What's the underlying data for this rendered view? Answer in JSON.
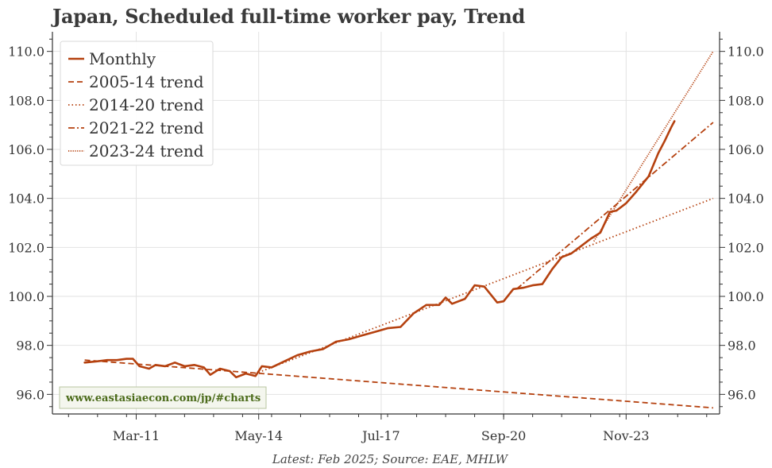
{
  "title": "Japan, Scheduled full-time worker pay, Trend",
  "footnote": "Latest: Feb 2025; Source: EAE, MHLW",
  "watermark": "www.eastasiaecon.com/jp/#charts",
  "colors": {
    "line": "#b5410f",
    "grid": "#e2e2e2",
    "axis": "#333333"
  },
  "chart_data": {
    "type": "line",
    "title": "Japan, Scheduled full-time worker pay, Trend",
    "xlabel": "",
    "ylabel": "",
    "xlim": [
      "2009-01",
      "2026-04"
    ],
    "ylim": [
      95.2,
      110.8
    ],
    "y_ticks": [
      96.0,
      98.0,
      100.0,
      102.0,
      104.0,
      106.0,
      108.0,
      110.0
    ],
    "y_tick_labels": [
      "96.0",
      "98.0",
      "100.0",
      "102.0",
      "104.0",
      "106.0",
      "108.0",
      "110.0"
    ],
    "x_tick_labels": [
      {
        "date": "2011-03",
        "label": "Mar-11"
      },
      {
        "date": "2014-05",
        "label": "May-14"
      },
      {
        "date": "2017-07",
        "label": "Jul-17"
      },
      {
        "date": "2020-09",
        "label": "Sep-20"
      },
      {
        "date": "2023-11",
        "label": "Nov-23"
      }
    ],
    "grid": true,
    "legend_position": "top-left",
    "series": [
      {
        "name": "Monthly",
        "style": "solid",
        "points": [
          [
            "2009-11",
            97.3
          ],
          [
            "2010-03",
            97.35
          ],
          [
            "2010-06",
            97.4
          ],
          [
            "2010-09",
            97.4
          ],
          [
            "2010-12",
            97.45
          ],
          [
            "2011-02",
            97.45
          ],
          [
            "2011-04",
            97.15
          ],
          [
            "2011-07",
            97.05
          ],
          [
            "2011-09",
            97.2
          ],
          [
            "2011-12",
            97.15
          ],
          [
            "2012-03",
            97.3
          ],
          [
            "2012-06",
            97.15
          ],
          [
            "2012-09",
            97.2
          ],
          [
            "2012-12",
            97.1
          ],
          [
            "2013-02",
            96.8
          ],
          [
            "2013-05",
            97.05
          ],
          [
            "2013-08",
            96.95
          ],
          [
            "2013-10",
            96.7
          ],
          [
            "2014-01",
            96.85
          ],
          [
            "2014-04",
            96.75
          ],
          [
            "2014-06",
            97.15
          ],
          [
            "2014-09",
            97.1
          ],
          [
            "2015-01",
            97.35
          ],
          [
            "2015-05",
            97.6
          ],
          [
            "2015-09",
            97.75
          ],
          [
            "2016-01",
            97.85
          ],
          [
            "2016-05",
            98.15
          ],
          [
            "2016-09",
            98.25
          ],
          [
            "2017-01",
            98.4
          ],
          [
            "2017-05",
            98.55
          ],
          [
            "2017-09",
            98.7
          ],
          [
            "2018-01",
            98.75
          ],
          [
            "2018-05",
            99.3
          ],
          [
            "2018-09",
            99.65
          ],
          [
            "2019-01",
            99.65
          ],
          [
            "2019-03",
            99.95
          ],
          [
            "2019-05",
            99.7
          ],
          [
            "2019-09",
            99.9
          ],
          [
            "2019-12",
            100.45
          ],
          [
            "2020-03",
            100.4
          ],
          [
            "2020-07",
            99.75
          ],
          [
            "2020-09",
            99.8
          ],
          [
            "2020-12",
            100.3
          ],
          [
            "2021-03",
            100.35
          ],
          [
            "2021-06",
            100.45
          ],
          [
            "2021-09",
            100.5
          ],
          [
            "2021-12",
            101.1
          ],
          [
            "2022-03",
            101.6
          ],
          [
            "2022-06",
            101.75
          ],
          [
            "2022-09",
            102.05
          ],
          [
            "2022-12",
            102.35
          ],
          [
            "2023-03",
            102.6
          ],
          [
            "2023-06",
            103.45
          ],
          [
            "2023-08",
            103.5
          ],
          [
            "2023-11",
            103.8
          ],
          [
            "2024-02",
            104.25
          ],
          [
            "2024-06",
            104.9
          ],
          [
            "2024-09",
            105.85
          ],
          [
            "2024-11",
            106.35
          ],
          [
            "2025-01",
            106.9
          ],
          [
            "2025-02",
            107.15
          ]
        ]
      },
      {
        "name": "2005-14 trend",
        "style": "dashed",
        "points": [
          [
            "2009-11",
            97.4
          ],
          [
            "2026-02",
            95.45
          ]
        ]
      },
      {
        "name": "2014-20 trend",
        "style": "dotted",
        "points": [
          [
            "2014-05",
            96.9
          ],
          [
            "2026-02",
            104.0
          ]
        ]
      },
      {
        "name": "2021-22 trend",
        "style": "dashdot",
        "points": [
          [
            "2021-01",
            100.3
          ],
          [
            "2026-02",
            107.1
          ]
        ]
      },
      {
        "name": "2023-24 trend",
        "style": "dense-dotted",
        "points": [
          [
            "2023-01",
            102.25
          ],
          [
            "2026-02",
            110.0
          ]
        ]
      }
    ]
  }
}
